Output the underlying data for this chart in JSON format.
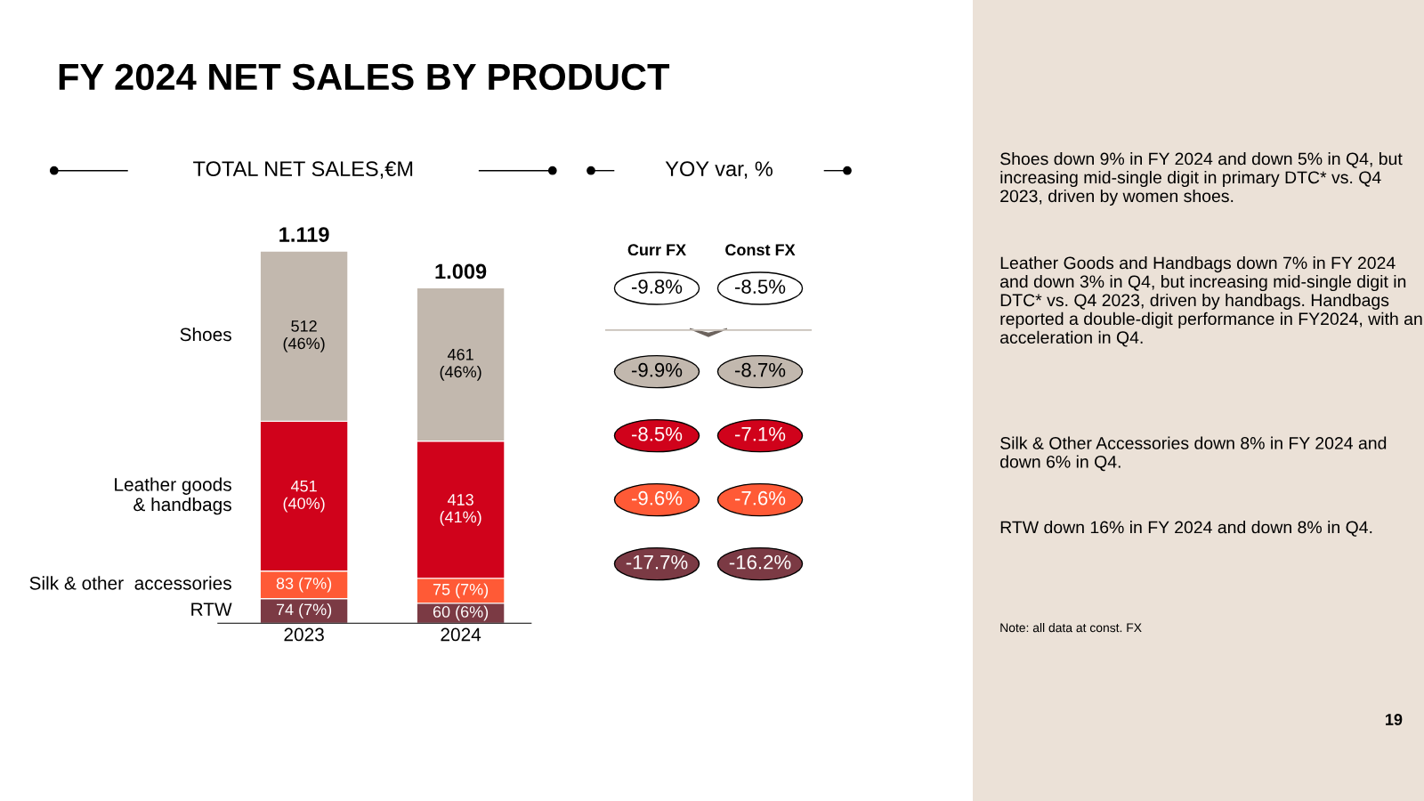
{
  "chart_data": [
    {
      "type": "bar",
      "stacked": true,
      "title": "FY 2024 NET SALES BY PRODUCT",
      "subtitle": "TOTAL NET SALES,€M",
      "categories": [
        "2023",
        "2024"
      ],
      "legend": false,
      "grid": false,
      "tick_labels": "x",
      "annotations": [
        {
          "text": "1.119",
          "x": "2023",
          "y": 1120
        },
        {
          "text": "1.009",
          "x": "2024",
          "y": 1009
        }
      ],
      "series": [
        {
          "name": "RTW",
          "color": "#7b3a44",
          "values": [
            74,
            60
          ],
          "value_labels": [
            "74 (7%)",
            "60 (6%)"
          ]
        },
        {
          "name": "Silk & other  accessories",
          "color": "#ff5a36",
          "values": [
            83,
            75
          ],
          "value_labels": [
            "83 (7%)",
            "75 (7%)"
          ]
        },
        {
          "name": "Leather goods\n& handbags",
          "color": "#d0021b",
          "values": [
            451,
            413
          ],
          "value_labels": [
            "451\n(40%)",
            "413\n(41%)"
          ]
        },
        {
          "name": "Shoes",
          "color": "#c2b8ae",
          "values": [
            512,
            461
          ],
          "value_labels": [
            "512\n(46%)",
            "461\n(46%)"
          ]
        }
      ]
    },
    {
      "type": "other",
      "title": "YOY var, %",
      "categories": [
        "Curr FX",
        "Const FX"
      ],
      "series": [
        {
          "color": "#ffffff",
          "values": [
            -9.8,
            -8.5
          ],
          "value_labels": [
            "-9.8%",
            "-8.5%"
          ]
        },
        {
          "color": "#c2b8ae",
          "values": [
            -9.9,
            -8.7
          ],
          "value_labels": [
            "-9.9%",
            "-8.7%"
          ]
        },
        {
          "color": "#d0021b",
          "values": [
            -8.5,
            -7.1
          ],
          "value_labels": [
            "-8.5%",
            "-7.1%"
          ]
        },
        {
          "color": "#ff5a36",
          "values": [
            -9.6,
            -7.6
          ],
          "value_labels": [
            "-9.6%",
            "-7.6%"
          ]
        },
        {
          "color": "#7b3a44",
          "values": [
            -17.7,
            -16.2
          ],
          "value_labels": [
            "-17.7%",
            "-16.2%"
          ]
        }
      ]
    },
    {
      "type": "other",
      "annotations": [
        "Shoes down 9% in FY 2024 and down 5% in Q4, but increasing mid-single digit in primary DTC* vs. Q4 2023, driven by women shoes.",
        "Leather Goods and Handbags down 7% in FY 2024 and down 3% in Q4, but increasing mid-single digit in DTC* vs. Q4 2023, driven by handbags. Handbags reported a double-digit performance in FY2024, with an acceleration in Q4.",
        "Silk & Other Accessories down 8% in FY 2024 and down 6% in Q4.",
        "RTW down 16% in FY 2024 and down 8% in Q4.",
        "Note: all data at const. FX",
        "19"
      ]
    }
  ]
}
